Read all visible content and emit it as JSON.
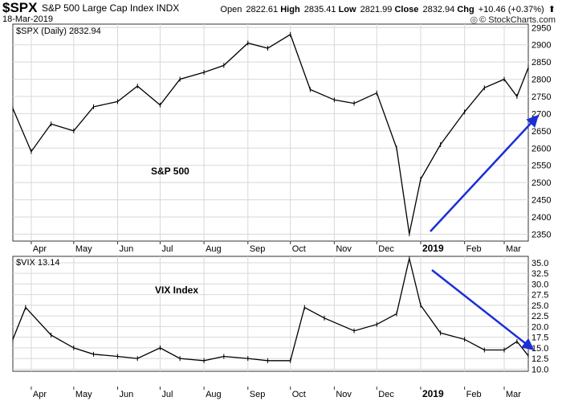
{
  "header": {
    "symbol": "$SPX",
    "name": "S&P 500 Large Cap Index",
    "exchange": "INDX",
    "date": "18-Mar-2019",
    "open_label": "Open",
    "open": "2822.61",
    "high_label": "High",
    "high": "2835.41",
    "low_label": "Low",
    "low": "2821.99",
    "close_label": "Close",
    "close": "2832.94",
    "chg_label": "Chg",
    "chg": "+10.46 (+0.37%)",
    "brand": "© StockCharts.com"
  },
  "panels": {
    "spx_label": "$SPX (Daily) 2832.94",
    "vix_label": "$VIX 13.14"
  },
  "annotations": {
    "spx": "S&P 500",
    "vix": "VIX Index"
  },
  "x_axis_months": [
    "Apr",
    "May",
    "Jun",
    "Jul",
    "Aug",
    "Sep",
    "Oct",
    "Nov",
    "Dec",
    "2019",
    "Feb",
    "Mar"
  ],
  "colors": {
    "price": "#000000",
    "grid": "#d8d8d8",
    "arrow": "#1a2fd6"
  },
  "chart_data": [
    {
      "type": "line",
      "series": [
        {
          "name": "$SPX",
          "x": [
            "2018-03-19",
            "2018-04-01",
            "2018-04-15",
            "2018-05-01",
            "2018-05-15",
            "2018-06-01",
            "2018-06-15",
            "2018-07-01",
            "2018-07-15",
            "2018-08-01",
            "2018-08-15",
            "2018-09-01",
            "2018-09-15",
            "2018-10-01",
            "2018-10-15",
            "2018-11-01",
            "2018-11-15",
            "2018-12-01",
            "2018-12-15",
            "2018-12-24",
            "2019-01-01",
            "2019-01-15",
            "2019-02-01",
            "2019-02-15",
            "2019-03-01",
            "2019-03-10",
            "2019-03-18"
          ],
          "values": [
            2715,
            2590,
            2670,
            2650,
            2720,
            2735,
            2780,
            2725,
            2800,
            2820,
            2840,
            2905,
            2890,
            2930,
            2770,
            2740,
            2730,
            2760,
            2600,
            2351,
            2510,
            2610,
            2705,
            2775,
            2800,
            2750,
            2833
          ]
        }
      ],
      "ylim": [
        2330,
        2960
      ],
      "yticks": [
        2350,
        2400,
        2450,
        2500,
        2550,
        2600,
        2650,
        2700,
        2750,
        2800,
        2850,
        2900,
        2950
      ],
      "grid": true
    },
    {
      "type": "line",
      "series": [
        {
          "name": "$VIX",
          "x": [
            "2018-03-19",
            "2018-03-28",
            "2018-04-15",
            "2018-05-01",
            "2018-05-15",
            "2018-06-01",
            "2018-06-15",
            "2018-07-01",
            "2018-07-15",
            "2018-08-01",
            "2018-08-15",
            "2018-09-01",
            "2018-09-15",
            "2018-10-01",
            "2018-10-11",
            "2018-10-25",
            "2018-11-15",
            "2018-12-01",
            "2018-12-15",
            "2018-12-24",
            "2019-01-01",
            "2019-01-15",
            "2019-02-01",
            "2019-02-15",
            "2019-03-01",
            "2019-03-10",
            "2019-03-18"
          ],
          "values": [
            17.0,
            24.5,
            18.0,
            15.0,
            13.5,
            13.0,
            12.5,
            15.0,
            12.5,
            12.0,
            13.0,
            12.5,
            12.0,
            12.0,
            24.5,
            22.0,
            19.0,
            20.5,
            23.0,
            36.0,
            25.0,
            18.5,
            17.0,
            14.5,
            14.5,
            16.5,
            13.14
          ]
        }
      ],
      "ylim": [
        9.5,
        36.5
      ],
      "yticks": [
        10.0,
        12.5,
        15.0,
        17.5,
        20.0,
        22.5,
        25.0,
        27.5,
        30.0,
        32.5,
        35.0
      ],
      "grid": true
    }
  ]
}
